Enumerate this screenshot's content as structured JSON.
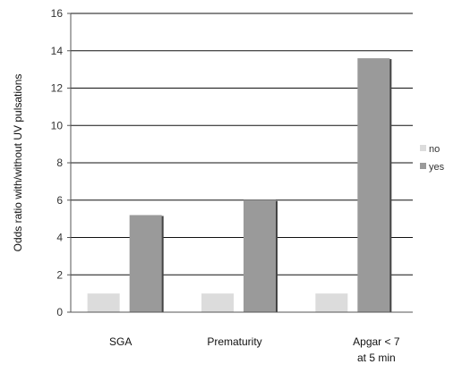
{
  "chart_data": {
    "type": "bar",
    "title": "",
    "xlabel": "",
    "ylabel": "Odds ratio with/without UV pulsations",
    "ylim": [
      0,
      16
    ],
    "yticks": [
      0,
      2,
      4,
      6,
      8,
      10,
      12,
      14,
      16
    ],
    "grid": true,
    "legend_position": "right",
    "categories": [
      [
        "SGA"
      ],
      [
        "Prematurity"
      ],
      [
        "Apgar < 7",
        "at 5 min"
      ]
    ],
    "series": [
      {
        "name": "no",
        "values": [
          1,
          1,
          1
        ],
        "color": "#dcdcdc"
      },
      {
        "name": "yes",
        "values": [
          5.2,
          6.0,
          13.6
        ],
        "color": "#9a9a9a"
      }
    ]
  }
}
